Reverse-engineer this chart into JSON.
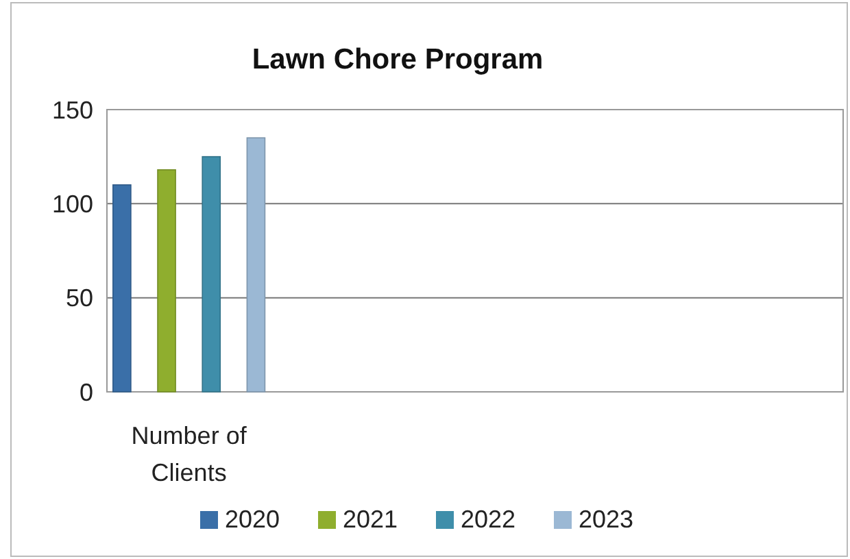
{
  "chart_data": {
    "type": "bar",
    "title": "Lawn Chore Program",
    "categories": [
      "Number of Clients",
      null,
      null,
      null
    ],
    "series": [
      {
        "name": "2020",
        "color": "#3a6fa8",
        "values": [
          110,
          null,
          null,
          null
        ]
      },
      {
        "name": "2021",
        "color": "#8fae2e",
        "values": [
          118,
          null,
          null,
          null
        ]
      },
      {
        "name": "2022",
        "color": "#3f8eaa",
        "values": [
          125,
          null,
          null,
          null
        ]
      },
      {
        "name": "2023",
        "color": "#9bb8d4",
        "values": [
          135,
          null,
          null,
          null
        ]
      }
    ],
    "ylim": [
      0,
      150
    ],
    "yticks": [
      0,
      50,
      100,
      150
    ],
    "grid": "y",
    "legend": "bottom"
  }
}
